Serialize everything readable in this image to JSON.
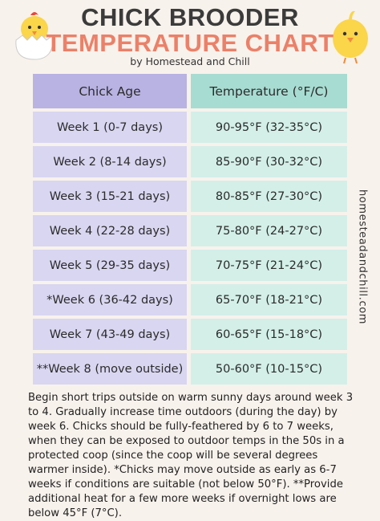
{
  "header": {
    "title_line1": "CHICK BROODER",
    "title_line2": "TEMPERATURE CHART",
    "byline": "by Homestead and Chill"
  },
  "table": {
    "columns": [
      "Chick Age",
      "Temperature (°F/C)"
    ],
    "rows": [
      [
        "Week 1 (0-7 days)",
        "90-95°F (32-35°C)"
      ],
      [
        "Week 2 (8-14 days)",
        "85-90°F (30-32°C)"
      ],
      [
        "Week 3 (15-21 days)",
        "80-85°F (27-30°C)"
      ],
      [
        "Week 4 (22-28 days)",
        "75-80°F (24-27°C)"
      ],
      [
        "Week 5 (29-35 days)",
        "70-75°F (21-24°C)"
      ],
      [
        "*Week 6 (36-42 days)",
        "65-70°F (18-21°C)"
      ],
      [
        "Week 7 (43-49 days)",
        "60-65°F (15-18°C)"
      ],
      [
        "**Week 8 (move outside)",
        "50-60°F (10-15°C)"
      ]
    ]
  },
  "side_text": "homesteadandchill.com",
  "footnote": "Begin short trips outside on warm sunny days around week 3 to 4. Gradually increase time outdoors (during the day) by week 6. Chicks should be fully-feathered by 6 to 7 weeks, when they can be exposed to outdoor temps in the 50s in a protected coop (since the coop will be several degrees warmer inside). *Chicks may move outside as early as 6-7 weeks if conditions are suitable (not below 50°F). **Provide additional heat for a few more weeks if overnight lows are below 45°F (7°C)."
}
